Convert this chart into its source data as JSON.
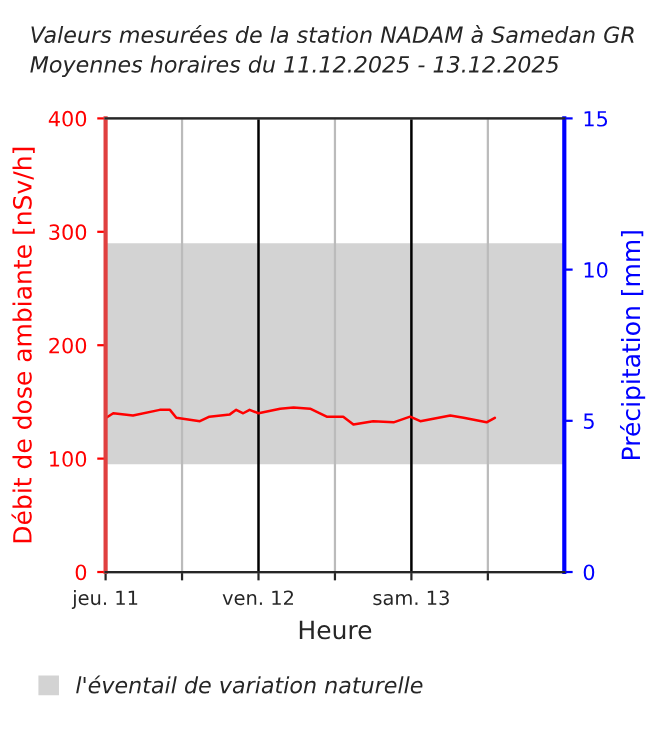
{
  "chart_data": {
    "type": "line",
    "title": "Valeurs mesurées de la station NADAM à Samedan GR",
    "subtitle": "Moyennes horaires du 11.12.2025 - 13.12.2025",
    "xlabel": "Heure",
    "ylabel": "Débit de dose ambiante [nSv/h]",
    "y2label": "Précipitation [mm]",
    "x": [
      "2025-12-11T00:06",
      "2025-12-11T01:12",
      "2025-12-11T04:18",
      "2025-12-11T08:30",
      "2025-12-11T10:06",
      "2025-12-11T11:06",
      "2025-12-11T14:48",
      "2025-12-11T16:18",
      "2025-12-11T19:30",
      "2025-12-11T20:30",
      "2025-12-11T21:36",
      "2025-12-11T22:36",
      "2025-12-12T00:00",
      "2025-12-12T03:24",
      "2025-12-12T05:30",
      "2025-12-12T08:06",
      "2025-12-12T10:42",
      "2025-12-12T13:18",
      "2025-12-12T14:54",
      "2025-12-12T18:00",
      "2025-12-12T21:12",
      "2025-12-12T23:48",
      "2025-12-13T01:24",
      "2025-12-13T06:06",
      "2025-12-13T08:12",
      "2025-12-13T11:48",
      "2025-12-13T13:06"
    ],
    "series": [
      {
        "color": "#ff0000",
        "values": [
          136,
          140,
          138,
          143,
          143,
          136,
          133,
          137,
          139,
          143,
          140,
          143,
          140,
          144,
          145,
          144,
          137,
          137,
          130,
          133,
          132,
          137,
          133,
          138,
          136,
          132,
          136
        ]
      }
    ],
    "xlim": [
      "2025-12-11",
      "2025-12-14"
    ],
    "xticks": [
      {
        "value": "2025-12-11",
        "label": "jeu. 11"
      },
      {
        "value": "2025-12-11T12:00",
        "label": null
      },
      {
        "value": "2025-12-12",
        "label": "ven. 12"
      },
      {
        "value": "2025-12-12T12:00",
        "label": null
      },
      {
        "value": "2025-12-13",
        "label": "sam. 13"
      },
      {
        "value": "2025-12-13T12:00",
        "label": null
      }
    ],
    "ylim": [
      0,
      400
    ],
    "yticks": [
      0,
      100,
      200,
      300,
      400
    ],
    "y2lim": [
      0,
      15
    ],
    "y2ticks": [
      0,
      5,
      10,
      15
    ],
    "bands": [
      {
        "axis": "y",
        "from": 95,
        "to": 290,
        "label": "l'éventail de variation naturelle",
        "color": "#d3d3d3"
      }
    ],
    "grid": "x",
    "legend": "bottom",
    "marker": "none",
    "line_style": "solid"
  }
}
